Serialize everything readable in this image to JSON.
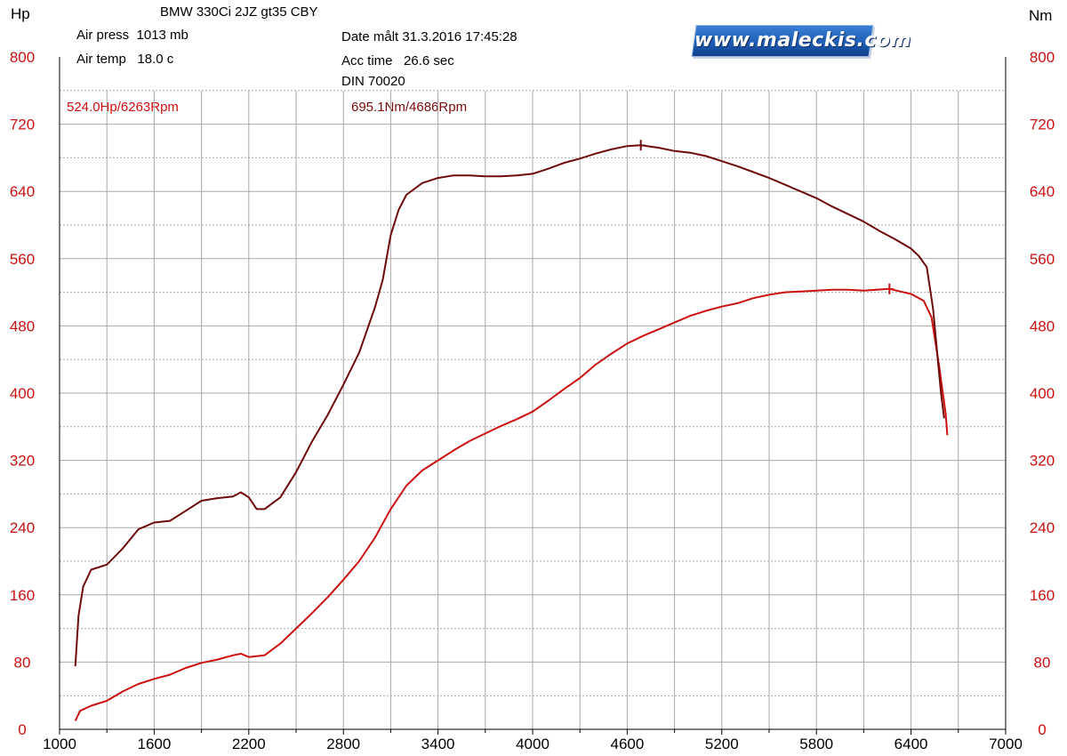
{
  "header": {
    "left_unit": "Hp",
    "right_unit": "Nm",
    "title": "BMW 330Ci 2JZ gt35 CBY",
    "air_press": "Air press  1013 mb",
    "air_temp": "Air temp   18.0 c",
    "date": "Date målt 31.3.2016 17:45:28",
    "acc_time": "Acc time   26.6 sec",
    "din": "DIN 70020",
    "logo_text": "www.maleckis.com"
  },
  "peaks": {
    "hp_peak_label": "524.0Hp/6263Rpm",
    "nm_peak_label": "695.1Nm/4686Rpm"
  },
  "colors": {
    "hp_curve": "#cc1010",
    "nm_curve": "#6e0a0a",
    "grid": "#a9a9a9",
    "axis_label": "#cc1010"
  },
  "chart_data": {
    "type": "line",
    "x_axis": {
      "min": 1000,
      "max": 7000,
      "ticks": [
        "1000",
        "1600",
        "2200",
        "2800",
        "3400",
        "4000",
        "4600",
        "5200",
        "5800",
        "6400",
        "7000"
      ]
    },
    "y_left": {
      "min": 0,
      "max": 800,
      "ticks": [
        "0",
        "80",
        "160",
        "240",
        "320",
        "400",
        "480",
        "560",
        "640",
        "720",
        "800"
      ]
    },
    "y_right": {
      "min": 0,
      "max": 800,
      "ticks": [
        "0",
        "80",
        "160",
        "240",
        "320",
        "400",
        "480",
        "560",
        "640",
        "720",
        "800"
      ]
    },
    "grid": true,
    "series": [
      {
        "unit": "Hp",
        "color": "#cc1010",
        "points": [
          [
            1100,
            10
          ],
          [
            1130,
            22
          ],
          [
            1200,
            28
          ],
          [
            1300,
            34
          ],
          [
            1400,
            45
          ],
          [
            1500,
            54
          ],
          [
            1600,
            60
          ],
          [
            1700,
            65
          ],
          [
            1800,
            73
          ],
          [
            1900,
            79
          ],
          [
            2000,
            83
          ],
          [
            2100,
            88
          ],
          [
            2150,
            90
          ],
          [
            2200,
            86
          ],
          [
            2300,
            88
          ],
          [
            2400,
            102
          ],
          [
            2500,
            120
          ],
          [
            2600,
            138
          ],
          [
            2700,
            157
          ],
          [
            2800,
            178
          ],
          [
            2900,
            200
          ],
          [
            3000,
            228
          ],
          [
            3100,
            262
          ],
          [
            3200,
            290
          ],
          [
            3300,
            308
          ],
          [
            3400,
            320
          ],
          [
            3500,
            332
          ],
          [
            3600,
            343
          ],
          [
            3700,
            352
          ],
          [
            3800,
            361
          ],
          [
            3900,
            369
          ],
          [
            4000,
            378
          ],
          [
            4100,
            391
          ],
          [
            4200,
            405
          ],
          [
            4300,
            418
          ],
          [
            4400,
            434
          ],
          [
            4500,
            447
          ],
          [
            4600,
            459
          ],
          [
            4700,
            468
          ],
          [
            4800,
            476
          ],
          [
            4900,
            484
          ],
          [
            5000,
            492
          ],
          [
            5100,
            498
          ],
          [
            5200,
            503
          ],
          [
            5300,
            507
          ],
          [
            5400,
            513
          ],
          [
            5500,
            517
          ],
          [
            5600,
            520
          ],
          [
            5700,
            521
          ],
          [
            5800,
            522
          ],
          [
            5900,
            523
          ],
          [
            6000,
            523
          ],
          [
            6100,
            522
          ],
          [
            6263,
            524
          ],
          [
            6400,
            518
          ],
          [
            6480,
            510
          ],
          [
            6530,
            490
          ],
          [
            6580,
            430
          ],
          [
            6620,
            375
          ],
          [
            6630,
            350
          ]
        ]
      },
      {
        "unit": "Nm",
        "color": "#6e0a0a",
        "points": [
          [
            1100,
            75
          ],
          [
            1120,
            135
          ],
          [
            1150,
            170
          ],
          [
            1200,
            190
          ],
          [
            1300,
            196
          ],
          [
            1400,
            215
          ],
          [
            1500,
            238
          ],
          [
            1600,
            246
          ],
          [
            1700,
            248
          ],
          [
            1800,
            260
          ],
          [
            1900,
            272
          ],
          [
            2000,
            275
          ],
          [
            2100,
            277
          ],
          [
            2150,
            282
          ],
          [
            2200,
            276
          ],
          [
            2250,
            262
          ],
          [
            2300,
            262
          ],
          [
            2400,
            276
          ],
          [
            2500,
            306
          ],
          [
            2600,
            342
          ],
          [
            2700,
            374
          ],
          [
            2800,
            410
          ],
          [
            2900,
            448
          ],
          [
            3000,
            502
          ],
          [
            3050,
            535
          ],
          [
            3100,
            588
          ],
          [
            3150,
            618
          ],
          [
            3200,
            636
          ],
          [
            3300,
            650
          ],
          [
            3400,
            656
          ],
          [
            3500,
            659
          ],
          [
            3600,
            659
          ],
          [
            3700,
            658
          ],
          [
            3800,
            658
          ],
          [
            3900,
            659
          ],
          [
            4000,
            661
          ],
          [
            4100,
            667
          ],
          [
            4200,
            674
          ],
          [
            4300,
            679
          ],
          [
            4400,
            685
          ],
          [
            4500,
            690
          ],
          [
            4600,
            694
          ],
          [
            4686,
            695
          ],
          [
            4800,
            692
          ],
          [
            4900,
            688
          ],
          [
            5000,
            686
          ],
          [
            5100,
            682
          ],
          [
            5200,
            676
          ],
          [
            5300,
            670
          ],
          [
            5400,
            663
          ],
          [
            5500,
            656
          ],
          [
            5600,
            648
          ],
          [
            5700,
            640
          ],
          [
            5800,
            632
          ],
          [
            5900,
            622
          ],
          [
            6000,
            613
          ],
          [
            6100,
            604
          ],
          [
            6200,
            593
          ],
          [
            6300,
            583
          ],
          [
            6400,
            572
          ],
          [
            6450,
            563
          ],
          [
            6500,
            550
          ],
          [
            6540,
            500
          ],
          [
            6570,
            440
          ],
          [
            6590,
            400
          ],
          [
            6610,
            370
          ]
        ]
      }
    ],
    "markers": [
      {
        "series": "Hp",
        "x": 6263,
        "y": 524
      },
      {
        "series": "Nm",
        "x": 4686,
        "y": 695
      }
    ]
  }
}
